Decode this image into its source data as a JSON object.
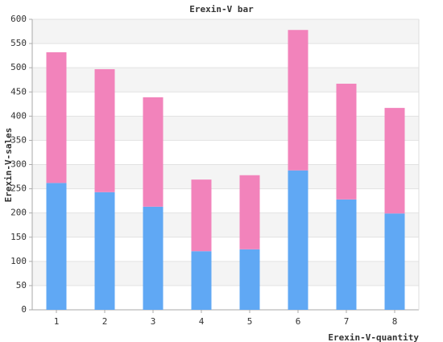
{
  "chart_data": {
    "type": "stacked_bar",
    "title": "Erexin-V bar",
    "xlabel": "Erexin-V-quantity",
    "ylabel": "Erexin-V-sales",
    "categories": [
      "1",
      "2",
      "3",
      "4",
      "5",
      "6",
      "7",
      "8"
    ],
    "series": [
      {
        "color": "#60a8f4",
        "values": [
          262,
          243,
          213,
          121,
          125,
          288,
          228,
          199
        ]
      },
      {
        "color": "#f283bb",
        "values": [
          270,
          254,
          226,
          148,
          153,
          290,
          239,
          218
        ]
      }
    ],
    "ylim": [
      0,
      600
    ],
    "yticks": [
      0,
      50,
      100,
      150,
      200,
      250,
      300,
      350,
      400,
      450,
      500,
      550,
      600
    ],
    "grid": true
  }
}
